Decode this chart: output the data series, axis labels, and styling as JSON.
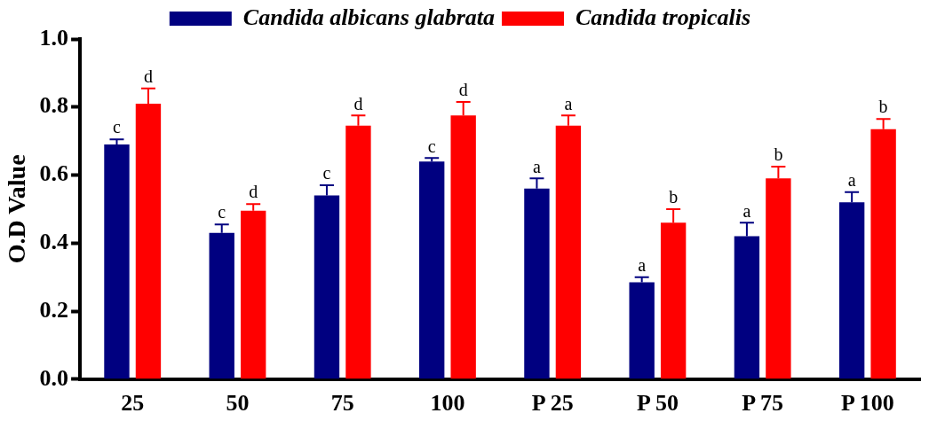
{
  "chart_data": {
    "type": "bar",
    "ylabel": "O.D Value",
    "categories": [
      "25",
      "50",
      "75",
      "100",
      "P 25",
      "P 50",
      "P 75",
      "P 100"
    ],
    "series": [
      {
        "name": "Candida albicans glabrata",
        "color": "#000080",
        "values": [
          0.69,
          0.43,
          0.54,
          0.64,
          0.56,
          0.285,
          0.42,
          0.52
        ],
        "errors": [
          [
            0.69,
            0.705
          ],
          [
            0.43,
            0.455
          ],
          [
            0.54,
            0.57
          ],
          [
            0.64,
            0.65
          ],
          [
            0.56,
            0.59
          ],
          [
            0.285,
            0.3
          ],
          [
            0.42,
            0.46
          ],
          [
            0.52,
            0.55
          ]
        ]
      },
      {
        "name": "Candida tropicalis",
        "color": "#ff0000",
        "values": [
          0.81,
          0.495,
          0.745,
          0.775,
          0.745,
          0.46,
          0.59,
          0.735
        ],
        "errors": [
          [
            0.81,
            0.855
          ],
          [
            0.495,
            0.515
          ],
          [
            0.745,
            0.775
          ],
          [
            0.775,
            0.815
          ],
          [
            0.745,
            0.775
          ],
          [
            0.46,
            0.5
          ],
          [
            0.59,
            0.625
          ],
          [
            0.735,
            0.765
          ]
        ]
      }
    ],
    "ylim": [
      0,
      1
    ],
    "yticks": [
      {
        "value": 0,
        "label": "0.0"
      },
      {
        "value": 0.2,
        "label": "0.2"
      },
      {
        "value": 0.4,
        "label": "0.4"
      },
      {
        "value": 0.6,
        "label": "0.6"
      },
      {
        "value": 0.8,
        "label": "0.8"
      },
      {
        "value": 1,
        "label": "1.0"
      }
    ],
    "grid": false,
    "legend": "top",
    "annotations": [
      {
        "text": "c",
        "x": "25",
        "y": 0.69
      },
      {
        "text": "d",
        "x": "25",
        "y": 0.81
      },
      {
        "text": "c",
        "x": "50",
        "y": 0.43
      },
      {
        "text": "d",
        "x": "50",
        "y": 0.495
      },
      {
        "text": "c",
        "x": "75",
        "y": 0.54
      },
      {
        "text": "d",
        "x": "75",
        "y": 0.745
      },
      {
        "text": "c",
        "x": "100",
        "y": 0.64
      },
      {
        "text": "d",
        "x": "100",
        "y": 0.775
      },
      {
        "text": "a",
        "x": "P 25",
        "y": 0.56
      },
      {
        "text": "a",
        "x": "P 25",
        "y": 0.745
      },
      {
        "text": "a",
        "x": "P 50",
        "y": 0.285
      },
      {
        "text": "b",
        "x": "P 50",
        "y": 0.46
      },
      {
        "text": "a",
        "x": "P 75",
        "y": 0.42
      },
      {
        "text": "b",
        "x": "P 75",
        "y": 0.59
      },
      {
        "text": "a",
        "x": "P 100",
        "y": 0.52
      },
      {
        "text": "b",
        "x": "P 100",
        "y": 0.735
      }
    ]
  }
}
